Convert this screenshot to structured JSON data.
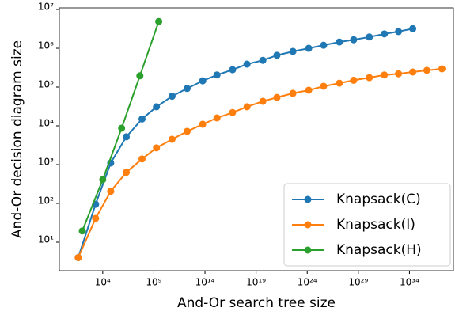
{
  "chart_data": {
    "type": "line",
    "x_label": "And-Or search tree size",
    "y_label": "And-Or decision diagram size",
    "x_log": true,
    "y_log": true,
    "legend": "lower right",
    "xlim": [
      0.57,
      2e+38
    ],
    "ylim": [
      1.84,
      11000000.0
    ],
    "xticks": [
      {
        "value": 10000.0,
        "label": "10⁴"
      },
      {
        "value": 1000000000.0,
        "label": "10⁹"
      },
      {
        "value": 100000000000000.0,
        "label": "10¹⁴"
      },
      {
        "value": 1e+19,
        "label": "10¹⁹"
      },
      {
        "value": 1e+24,
        "label": "10²⁴"
      },
      {
        "value": 1e+29,
        "label": "10²⁹"
      },
      {
        "value": 1e+34,
        "label": "10³⁴"
      }
    ],
    "yticks": [
      {
        "value": 10,
        "label": "10¹"
      },
      {
        "value": 100,
        "label": "10²"
      },
      {
        "value": 1000,
        "label": "10³"
      },
      {
        "value": 10000,
        "label": "10⁴"
      },
      {
        "value": 100000,
        "label": "10⁵"
      },
      {
        "value": 1000000,
        "label": "10⁶"
      },
      {
        "value": 10000000,
        "label": "10⁷"
      }
    ],
    "series": [
      {
        "name": "Knapsack(C)",
        "color": "#1f77b4",
        "x": [
          40.0,
          2000.0,
          60000.0,
          2000000.0,
          70000000.0,
          1800000000.0,
          60000000000.0,
          1800000000000.0,
          60000000000000.0,
          1500000000000000.0,
          5e+16,
          1.3e+18,
          4.6e+19,
          1.1e+21,
          4e+22,
          1.4e+24,
          4e+25,
          1.4e+27,
          3.5e+28,
          1.2e+30,
          3.5e+31,
          8.5e+32,
          2.1e+34
        ],
        "values": [
          4,
          95,
          1100,
          5200,
          15000,
          31000,
          58000,
          92000,
          145000,
          205000,
          280000,
          390000,
          490000,
          660000,
          830000,
          1000000,
          1200000,
          1450000,
          1660000,
          1950000,
          2350000,
          2700000,
          3200000
        ]
      },
      {
        "name": "Knapsack(I)",
        "color": "#ff7f0e",
        "x": [
          40.0,
          2000.0,
          60000.0,
          2000000.0,
          70000000.0,
          1800000000.0,
          60000000000.0,
          1800000000000.0,
          60000000000000.0,
          1500000000000000.0,
          5e+16,
          1.3e+18,
          4.6e+19,
          1.1e+21,
          4e+22,
          1.4e+24,
          4e+25,
          1.4e+27,
          3.5e+28,
          1.2e+30,
          3.5e+31,
          8.5e+32,
          2.1e+34,
          5e+35,
          1.5e+37
        ],
        "values": [
          4,
          41,
          205,
          630,
          1400,
          2700,
          4500,
          7200,
          11000,
          16000,
          22000,
          31000,
          43000,
          54000,
          69000,
          83000,
          105000,
          126000,
          150000,
          175000,
          205000,
          220000,
          245000,
          270000,
          295000
        ]
      },
      {
        "name": "Knapsack(H)",
        "color": "#2ca02c",
        "x": [
          100.0,
          10000.0,
          700000.0,
          43000000.0,
          3000000000.0
        ],
        "values": [
          19.5,
          410,
          8700,
          195000,
          4900000
        ]
      }
    ]
  }
}
